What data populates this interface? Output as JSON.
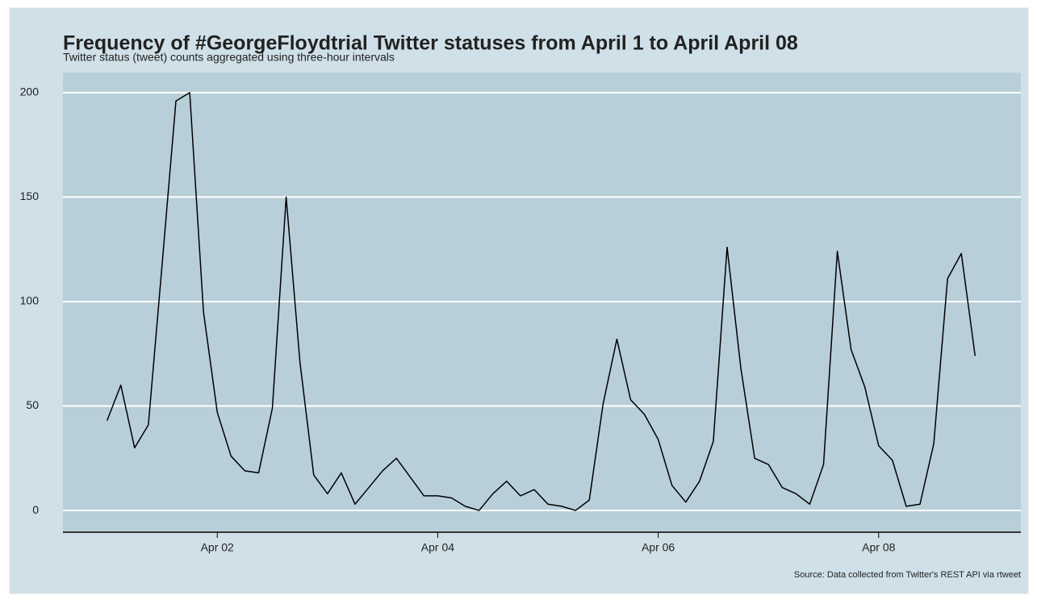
{
  "chart_data": {
    "type": "line",
    "title": "Frequency of #GeorgeFloydtrial Twitter statuses from April 1 to April April 08",
    "subtitle": "Twitter status (tweet) counts aggregated using three-hour intervals",
    "caption": "Source: Data collected from Twitter's REST API via rtweet",
    "color": "#000000",
    "x": [
      1,
      1.125,
      1.25,
      1.375,
      1.5,
      1.625,
      1.75,
      1.875,
      2,
      2.125,
      2.25,
      2.375,
      2.5,
      2.625,
      2.75,
      2.875,
      3,
      3.125,
      3.25,
      3.375,
      3.5,
      3.625,
      3.75,
      3.875,
      4,
      4.125,
      4.25,
      4.375,
      4.5,
      4.625,
      4.75,
      4.875,
      5,
      5.125,
      5.25,
      5.375,
      5.5,
      5.625,
      5.75,
      5.875,
      6,
      6.125,
      6.25,
      6.375,
      6.5,
      6.625,
      6.75,
      6.875,
      7,
      7.125,
      7.25,
      7.375,
      7.5,
      7.625,
      7.75,
      7.875,
      8,
      8.125,
      8.25,
      8.375,
      8.5,
      8.625,
      8.75,
      8.875
    ],
    "values": [
      43,
      60,
      30,
      41,
      118,
      196,
      200,
      95,
      47,
      26,
      19,
      18,
      49,
      150,
      71,
      17,
      8,
      18,
      3,
      11,
      19,
      25,
      16,
      7,
      7,
      6,
      2,
      0,
      8,
      14,
      7,
      10,
      3,
      2,
      0,
      5,
      51,
      82,
      53,
      46,
      34,
      12,
      4,
      14,
      33,
      126,
      68,
      25,
      22,
      11,
      8,
      3,
      22,
      124,
      77,
      59,
      31,
      24,
      2,
      3,
      32,
      111,
      123,
      74
    ],
    "xlim": [
      0.6,
      9.29
    ],
    "xticks": [
      {
        "value": 2,
        "label": "Apr 02"
      },
      {
        "value": 4,
        "label": "Apr 04"
      },
      {
        "value": 6,
        "label": "Apr 06"
      },
      {
        "value": 8,
        "label": "Apr 08"
      }
    ],
    "ylim": [
      -10.4,
      209.6
    ],
    "yticks": [
      0,
      50,
      100,
      150,
      200
    ],
    "grid": true
  }
}
